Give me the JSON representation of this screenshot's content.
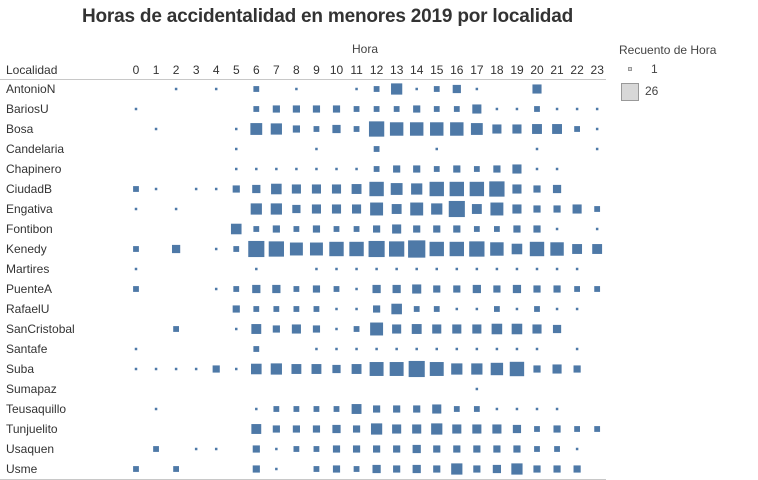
{
  "chart_data": {
    "type": "heatmap",
    "title": "Horas de accidentalidad en menores 2019 por localidad",
    "x_header": "Hora",
    "row_header": "Localidad",
    "hours": [
      "0",
      "1",
      "2",
      "3",
      "4",
      "5",
      "6",
      "7",
      "8",
      "9",
      "10",
      "11",
      "12",
      "13",
      "14",
      "15",
      "16",
      "17",
      "18",
      "19",
      "20",
      "21",
      "22",
      "23"
    ],
    "size_range": [
      1,
      26
    ],
    "mark_color": "#4e79a7",
    "rows": [
      {
        "name": "AntonioN",
        "values": [
          0,
          0,
          1,
          0,
          1,
          0,
          2,
          0,
          1,
          0,
          0,
          1,
          2,
          8,
          1,
          2,
          4,
          1,
          0,
          0,
          5,
          0,
          0,
          0
        ]
      },
      {
        "name": "BariosU",
        "values": [
          1,
          0,
          0,
          0,
          0,
          0,
          2,
          3,
          3,
          3,
          3,
          2,
          2,
          2,
          3,
          2,
          2,
          5,
          1,
          1,
          2,
          1,
          1,
          1
        ]
      },
      {
        "name": "Bosa",
        "values": [
          0,
          1,
          0,
          0,
          0,
          1,
          9,
          8,
          3,
          2,
          4,
          2,
          16,
          12,
          12,
          12,
          12,
          9,
          5,
          5,
          6,
          6,
          2,
          1
        ]
      },
      {
        "name": "Candelaria",
        "values": [
          0,
          0,
          0,
          0,
          0,
          1,
          0,
          0,
          0,
          1,
          0,
          0,
          2,
          0,
          0,
          1,
          0,
          0,
          0,
          0,
          1,
          0,
          0,
          1
        ]
      },
      {
        "name": "Chapinero",
        "values": [
          0,
          0,
          0,
          0,
          0,
          1,
          1,
          1,
          1,
          1,
          1,
          1,
          2,
          3,
          3,
          2,
          3,
          2,
          3,
          5,
          1,
          1,
          0,
          0
        ]
      },
      {
        "name": "CiudadB",
        "values": [
          2,
          1,
          0,
          1,
          1,
          3,
          4,
          7,
          5,
          5,
          5,
          6,
          14,
          9,
          8,
          14,
          14,
          14,
          16,
          5,
          3,
          4,
          0,
          0
        ]
      },
      {
        "name": "Engativa",
        "values": [
          1,
          0,
          1,
          0,
          0,
          0,
          8,
          8,
          4,
          5,
          5,
          5,
          11,
          6,
          11,
          8,
          18,
          6,
          11,
          5,
          3,
          3,
          5,
          2
        ]
      },
      {
        "name": "Fontibon",
        "values": [
          0,
          0,
          0,
          0,
          0,
          7,
          2,
          3,
          2,
          3,
          2,
          2,
          3,
          5,
          3,
          3,
          3,
          2,
          2,
          3,
          3,
          1,
          0,
          1
        ]
      },
      {
        "name": "Kenedy",
        "values": [
          2,
          0,
          4,
          0,
          1,
          2,
          18,
          16,
          11,
          11,
          14,
          14,
          18,
          16,
          21,
          14,
          14,
          16,
          12,
          7,
          14,
          12,
          6,
          6
        ]
      },
      {
        "name": "Martires",
        "values": [
          1,
          0,
          0,
          0,
          0,
          0,
          1,
          0,
          0,
          1,
          1,
          1,
          1,
          1,
          1,
          1,
          1,
          1,
          1,
          1,
          1,
          1,
          1,
          0
        ]
      },
      {
        "name": "PuenteA",
        "values": [
          2,
          0,
          0,
          0,
          1,
          2,
          4,
          4,
          2,
          3,
          2,
          1,
          4,
          4,
          5,
          3,
          3,
          4,
          3,
          4,
          3,
          3,
          2,
          2
        ]
      },
      {
        "name": "RafaelU",
        "values": [
          0,
          0,
          0,
          0,
          0,
          3,
          2,
          2,
          2,
          2,
          1,
          1,
          3,
          7,
          2,
          2,
          1,
          1,
          2,
          1,
          2,
          1,
          1,
          0
        ]
      },
      {
        "name": "SanCristobal",
        "values": [
          0,
          0,
          2,
          0,
          0,
          1,
          6,
          3,
          5,
          3,
          1,
          2,
          11,
          5,
          6,
          5,
          5,
          5,
          7,
          7,
          5,
          4,
          0,
          0
        ]
      },
      {
        "name": "Santafe",
        "values": [
          1,
          0,
          0,
          0,
          0,
          0,
          2,
          0,
          0,
          1,
          1,
          1,
          1,
          1,
          1,
          1,
          1,
          1,
          1,
          1,
          1,
          0,
          1,
          0
        ]
      },
      {
        "name": "Suba",
        "values": [
          1,
          1,
          1,
          1,
          3,
          1,
          7,
          8,
          6,
          6,
          4,
          6,
          13,
          13,
          18,
          13,
          8,
          8,
          10,
          14,
          3,
          5,
          3,
          0
        ]
      },
      {
        "name": "Sumapaz",
        "values": [
          0,
          0,
          0,
          0,
          0,
          0,
          0,
          0,
          0,
          0,
          0,
          0,
          0,
          0,
          0,
          0,
          0,
          1,
          0,
          0,
          0,
          0,
          0,
          0
        ]
      },
      {
        "name": "Teusaquillo",
        "values": [
          0,
          1,
          0,
          0,
          0,
          0,
          1,
          2,
          2,
          2,
          2,
          6,
          3,
          3,
          3,
          5,
          2,
          2,
          1,
          1,
          1,
          1,
          0,
          0
        ]
      },
      {
        "name": "Tunjuelito",
        "values": [
          0,
          0,
          0,
          0,
          0,
          0,
          6,
          3,
          3,
          3,
          4,
          3,
          8,
          5,
          5,
          8,
          5,
          5,
          5,
          4,
          2,
          3,
          2,
          2
        ]
      },
      {
        "name": "Usaquen",
        "values": [
          0,
          2,
          0,
          1,
          1,
          0,
          3,
          1,
          2,
          2,
          3,
          3,
          3,
          3,
          4,
          3,
          3,
          3,
          3,
          3,
          2,
          2,
          1,
          0
        ]
      },
      {
        "name": "Usme",
        "values": [
          2,
          0,
          2,
          0,
          0,
          0,
          3,
          1,
          0,
          2,
          3,
          2,
          4,
          3,
          4,
          3,
          8,
          3,
          4,
          8,
          3,
          3,
          3,
          0
        ]
      }
    ]
  },
  "legend": {
    "title": "Recuento de Hora",
    "min_label": "1",
    "max_label": "26"
  }
}
